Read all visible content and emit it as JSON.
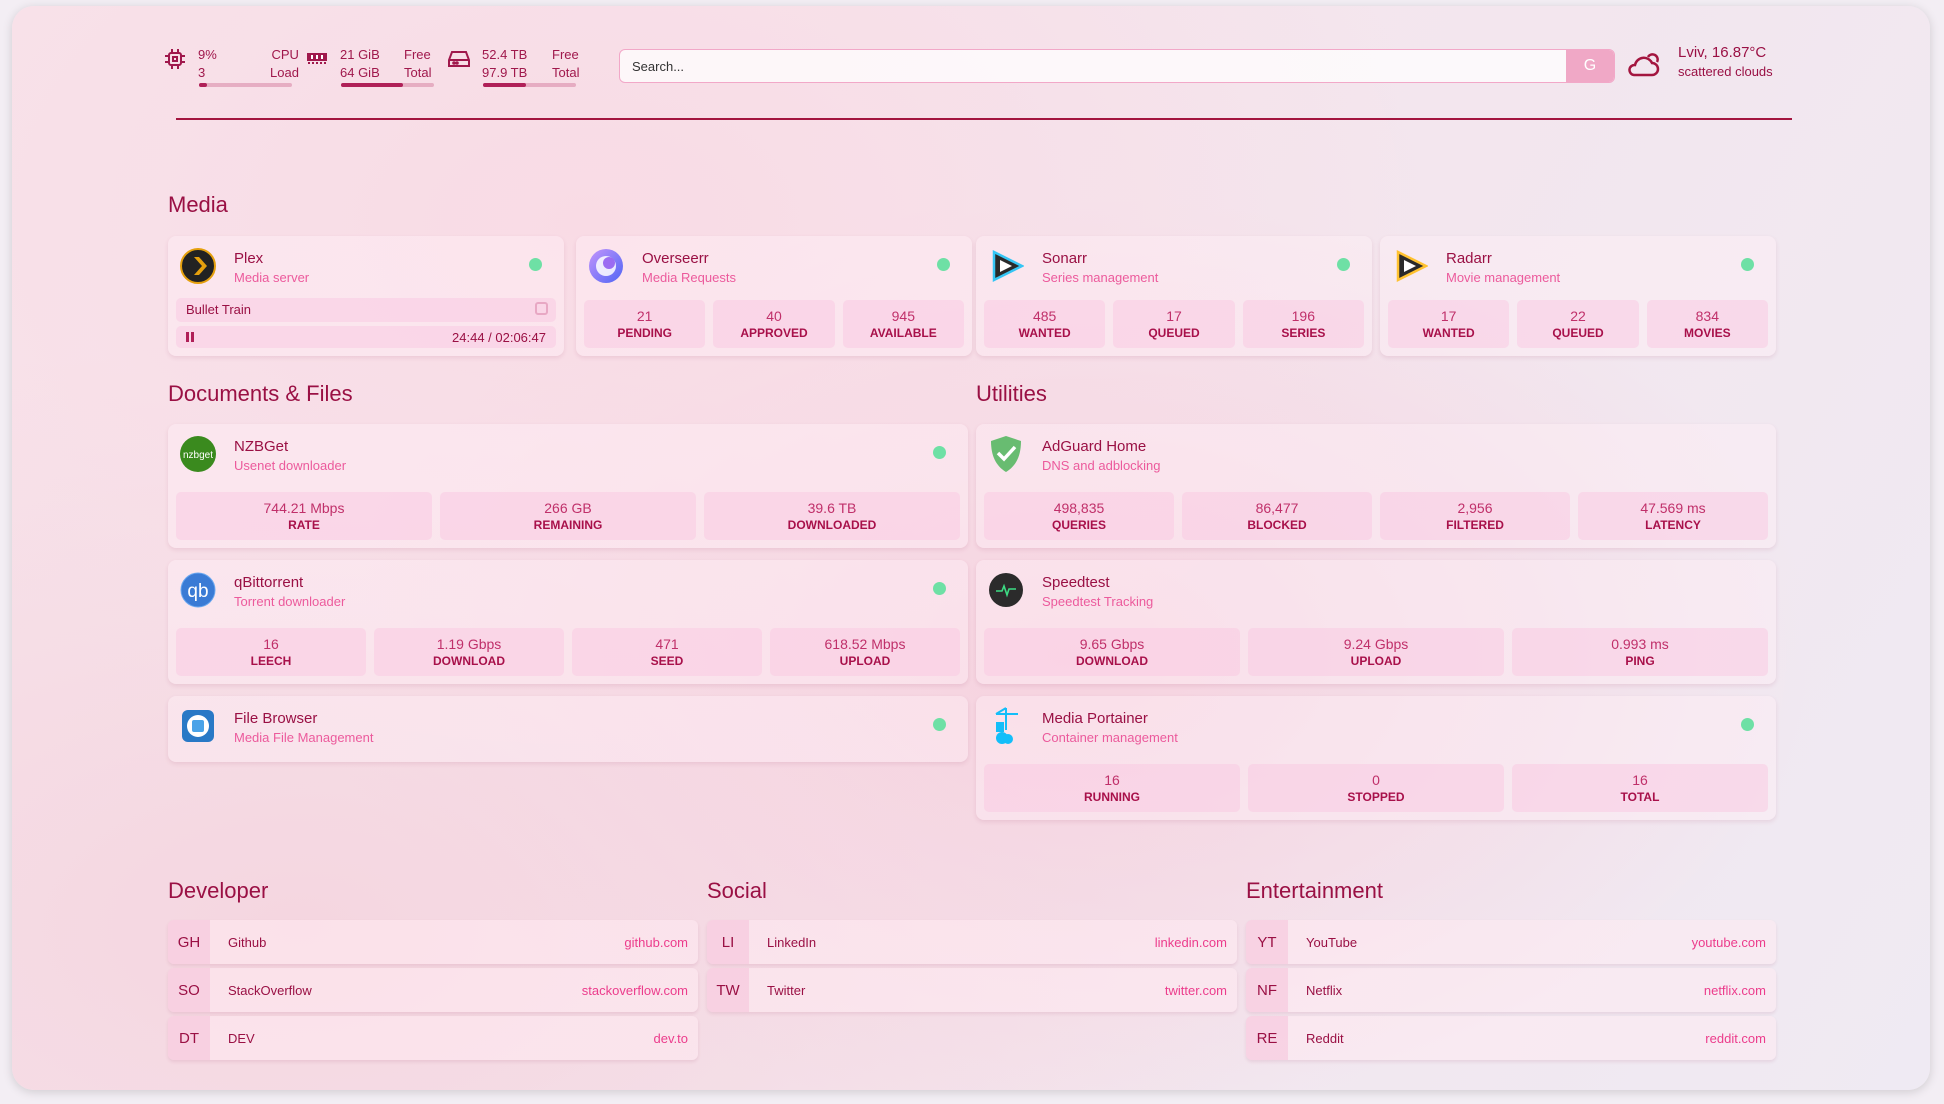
{
  "header": {
    "cpu": {
      "icon": "cpu-icon",
      "value": "9%",
      "sub": "3",
      "label1": "CPU",
      "label2": "Load",
      "percent": 9
    },
    "memory": {
      "icon": "memory-icon",
      "value": "21 GiB",
      "sub": "64 GiB",
      "label1": "Free",
      "label2": "Total",
      "percent": 67
    },
    "disk": {
      "icon": "disk-icon",
      "value": "52.4 TB",
      "sub": "97.9 TB",
      "label1": "Free",
      "label2": "Total",
      "percent": 46
    },
    "search": {
      "placeholder": "Search...",
      "button": "G"
    },
    "weather": {
      "icon": "cloud-icon",
      "location": "Lviv, 16.87°C",
      "description": "scattered clouds"
    }
  },
  "sections": {
    "media": "Media",
    "documents": "Documents & Files",
    "utilities": "Utilities",
    "developer": "Developer",
    "social": "Social",
    "entertainment": "Entertainment"
  },
  "media": [
    {
      "name": "Plex",
      "sub": "Media server",
      "icon": "plex-icon",
      "status": "online",
      "nowplaying": {
        "title": "Bullet Train",
        "time": "24:44 / 02:06:47",
        "state": "paused",
        "progress": 19.5
      }
    },
    {
      "name": "Overseerr",
      "sub": "Media Requests",
      "icon": "overseerr-icon",
      "status": "online",
      "stats": [
        {
          "v": "21",
          "l": "PENDING"
        },
        {
          "v": "40",
          "l": "APPROVED"
        },
        {
          "v": "945",
          "l": "AVAILABLE"
        }
      ]
    },
    {
      "name": "Sonarr",
      "sub": "Series management",
      "icon": "sonarr-icon",
      "status": "online",
      "stats": [
        {
          "v": "485",
          "l": "WANTED"
        },
        {
          "v": "17",
          "l": "QUEUED"
        },
        {
          "v": "196",
          "l": "SERIES"
        }
      ]
    },
    {
      "name": "Radarr",
      "sub": "Movie management",
      "icon": "radarr-icon",
      "status": "online",
      "stats": [
        {
          "v": "17",
          "l": "WANTED"
        },
        {
          "v": "22",
          "l": "QUEUED"
        },
        {
          "v": "834",
          "l": "MOVIES"
        }
      ]
    }
  ],
  "documents": [
    {
      "name": "NZBGet",
      "sub": "Usenet downloader",
      "icon": "nzbget-icon",
      "status": "online",
      "stats": [
        {
          "v": "744.21 Mbps",
          "l": "RATE"
        },
        {
          "v": "266 GB",
          "l": "REMAINING"
        },
        {
          "v": "39.6 TB",
          "l": "DOWNLOADED"
        }
      ]
    },
    {
      "name": "qBittorrent",
      "sub": "Torrent downloader",
      "icon": "qbittorrent-icon",
      "status": "online",
      "stats": [
        {
          "v": "16",
          "l": "LEECH"
        },
        {
          "v": "1.19 Gbps",
          "l": "DOWNLOAD"
        },
        {
          "v": "471",
          "l": "SEED"
        },
        {
          "v": "618.52 Mbps",
          "l": "UPLOAD"
        }
      ]
    },
    {
      "name": "File Browser",
      "sub": "Media File Management",
      "icon": "filebrowser-icon",
      "status": "online"
    }
  ],
  "utilities": [
    {
      "name": "AdGuard Home",
      "sub": "DNS and adblocking",
      "icon": "adguard-icon",
      "stats": [
        {
          "v": "498,835",
          "l": "QUERIES"
        },
        {
          "v": "86,477",
          "l": "BLOCKED"
        },
        {
          "v": "2,956",
          "l": "FILTERED"
        },
        {
          "v": "47.569 ms",
          "l": "LATENCY"
        }
      ]
    },
    {
      "name": "Speedtest",
      "sub": "Speedtest Tracking",
      "icon": "speedtest-icon",
      "stats": [
        {
          "v": "9.65 Gbps",
          "l": "DOWNLOAD"
        },
        {
          "v": "9.24 Gbps",
          "l": "UPLOAD"
        },
        {
          "v": "0.993 ms",
          "l": "PING"
        }
      ]
    },
    {
      "name": "Media Portainer",
      "sub": "Container management",
      "icon": "portainer-icon",
      "status": "online",
      "stats": [
        {
          "v": "16",
          "l": "RUNNING"
        },
        {
          "v": "0",
          "l": "STOPPED"
        },
        {
          "v": "16",
          "l": "TOTAL"
        }
      ]
    }
  ],
  "bookmarks": {
    "developer": [
      {
        "abbr": "GH",
        "name": "Github",
        "url": "github.com"
      },
      {
        "abbr": "SO",
        "name": "StackOverflow",
        "url": "stackoverflow.com"
      },
      {
        "abbr": "DT",
        "name": "DEV",
        "url": "dev.to"
      }
    ],
    "social": [
      {
        "abbr": "LI",
        "name": "LinkedIn",
        "url": "linkedin.com"
      },
      {
        "abbr": "TW",
        "name": "Twitter",
        "url": "twitter.com"
      }
    ],
    "entertainment": [
      {
        "abbr": "YT",
        "name": "YouTube",
        "url": "youtube.com"
      },
      {
        "abbr": "NF",
        "name": "Netflix",
        "url": "netflix.com"
      },
      {
        "abbr": "RE",
        "name": "Reddit",
        "url": "reddit.com"
      }
    ]
  },
  "colors": {
    "accent": "#9a1044",
    "status_online": "#6ee0a5",
    "subtitle": "#ec5a9c"
  }
}
